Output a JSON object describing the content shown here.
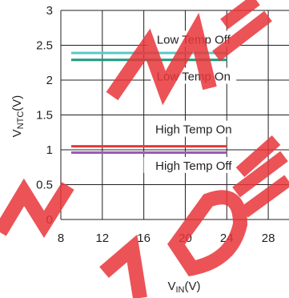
{
  "chart_data": {
    "type": "line",
    "title": "",
    "xlabel": "V",
    "xlabel_sub": "IN",
    "xlabel_suffix": "(V)",
    "ylabel": "V",
    "ylabel_sub": "NTC",
    "ylabel_suffix": "(V)",
    "xlim": [
      8,
      30
    ],
    "ylim": [
      0,
      3
    ],
    "xticks": [
      8,
      12,
      16,
      20,
      24,
      28
    ],
    "yticks": [
      0,
      0.5,
      1,
      1.5,
      2,
      2.5,
      3
    ],
    "xtick_labels": [
      "8",
      "12",
      "16",
      "20",
      "24",
      "28"
    ],
    "ytick_labels": [
      "0",
      "0.5",
      "1",
      "1.5",
      "2",
      "2.5",
      "3"
    ],
    "grid": true,
    "series": [
      {
        "name": "Low Temp Off",
        "x": [
          9,
          24
        ],
        "y": [
          2.39,
          2.39
        ],
        "color": "#5bc8c8"
      },
      {
        "name": "Low Temp On",
        "x": [
          9,
          24
        ],
        "y": [
          2.29,
          2.29
        ],
        "color": "#1e9a7e"
      },
      {
        "name": "High Temp On",
        "x": [
          9,
          24
        ],
        "y": [
          1.05,
          1.05
        ],
        "color": "#e8363a"
      },
      {
        "name": "High Temp Off",
        "x": [
          9,
          24
        ],
        "y": [
          0.96,
          0.96
        ],
        "color": "#9b59b6"
      }
    ],
    "annotations": [
      {
        "text": "Low Temp Off",
        "x": 20.8,
        "y": 2.57
      },
      {
        "text": "Low Temp On",
        "x": 20.8,
        "y": 2.04
      },
      {
        "text": "High Temp On",
        "x": 20.8,
        "y": 1.28
      },
      {
        "text": "High Temp Off",
        "x": 20.8,
        "y": 0.76
      }
    ],
    "watermark_text": "NOT RECOMMENDED",
    "watermark_color": "#e8363a"
  }
}
